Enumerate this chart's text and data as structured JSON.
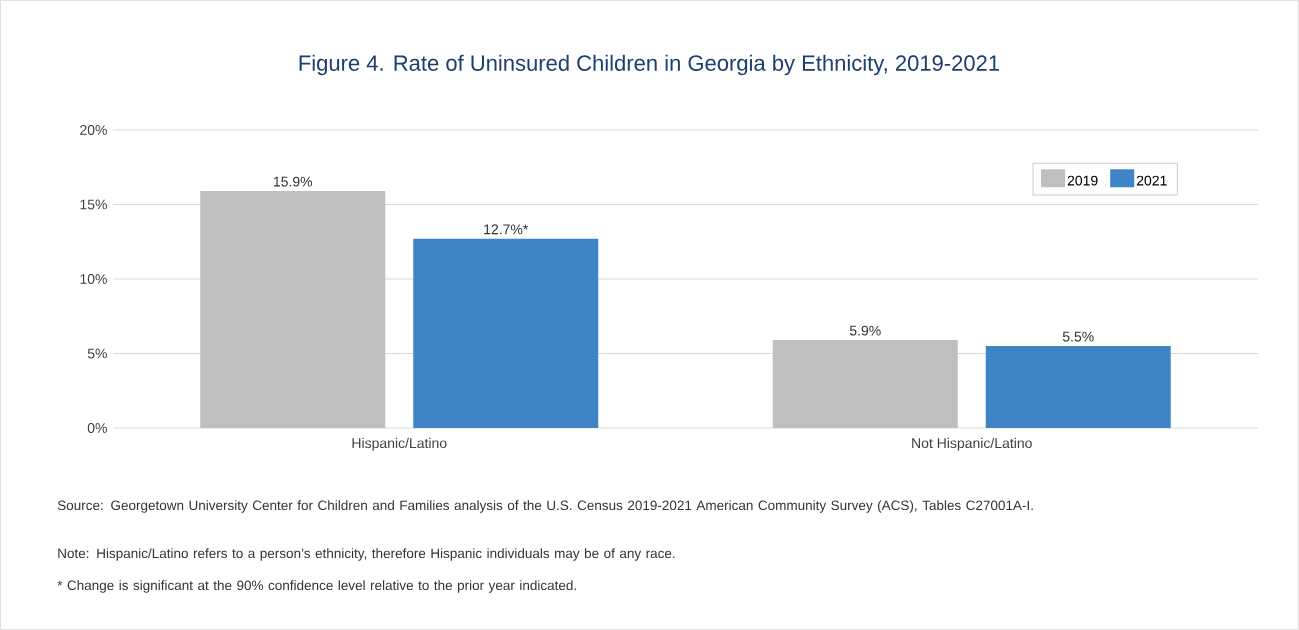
{
  "chart_data": {
    "type": "bar",
    "title": "Figure 4. Rate of Uninsured Children in Georgia by Ethnicity, 2019-2021",
    "categories": [
      "Hispanic/Latino",
      "Not Hispanic/Latino"
    ],
    "series": [
      {
        "name": "2019",
        "color": "#bfbfbf",
        "values": [
          15.9,
          5.9
        ],
        "value_labels": [
          "15.9%",
          "5.9%"
        ]
      },
      {
        "name": "2021",
        "color": "#3f85c6",
        "values": [
          12.7,
          5.5
        ],
        "value_labels": [
          "12.7%*",
          "5.5%"
        ]
      }
    ],
    "ylim": [
      0,
      20
    ],
    "yticks": [
      {
        "value": 0,
        "label": "0%"
      },
      {
        "value": 5,
        "label": "5%"
      },
      {
        "value": 10,
        "label": "10%"
      },
      {
        "value": 15,
        "label": "15%"
      },
      {
        "value": 20,
        "label": "20%"
      }
    ],
    "grid": "y",
    "legend": "top right",
    "annotations": [
      "Source: Georgetown University Center for Children and Families analysis of the U.S. Census 2019-2021 American Community Survey (ACS), Tables C27001A-I.",
      "Note: Hispanic/Latino refers to a person’s ethnicity, therefore Hispanic individuals may be of any race.",
      "* Change is significant at the 90% confidence level relative to the prior year indicated."
    ]
  }
}
